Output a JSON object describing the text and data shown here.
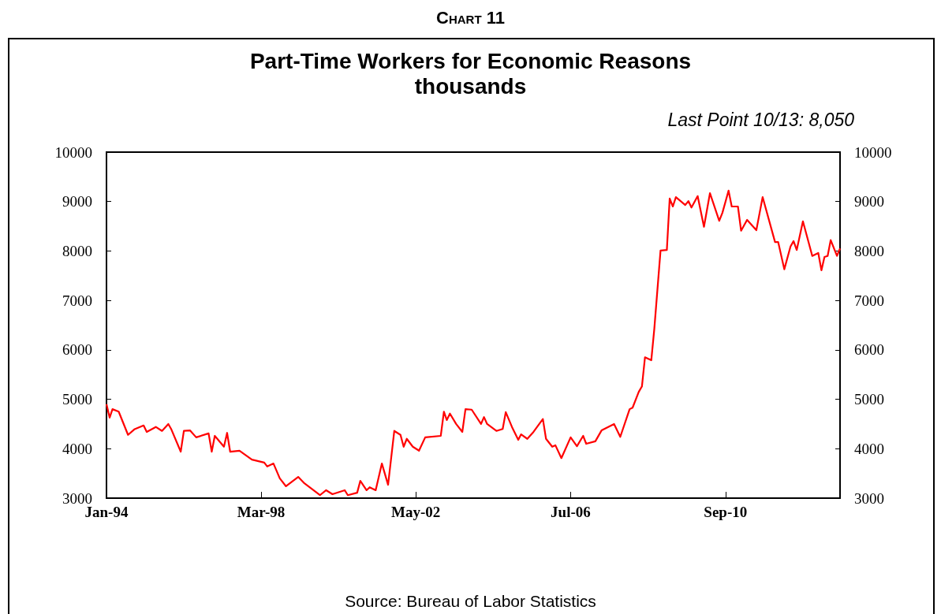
{
  "chart_data": {
    "type": "line",
    "title": "Part-Time Workers for Economic Reasons",
    "subtitle": "thousands",
    "annotations": [
      "Chart 11",
      "Last Point 10/13: 8,050",
      "Source: Bureau of Labor Statistics"
    ],
    "x": [
      "1994-01",
      "1994-02",
      "1994-03",
      "1994-05",
      "1994-08",
      "1994-10",
      "1995-01",
      "1995-02",
      "1995-05",
      "1995-07",
      "1995-09",
      "1995-10",
      "1996-01",
      "1996-02",
      "1996-04",
      "1996-06",
      "1996-10",
      "1996-11",
      "1996-12",
      "1997-03",
      "1997-04",
      "1997-05",
      "1997-08",
      "1997-12",
      "1998-04",
      "1998-05",
      "1998-07",
      "1998-09",
      "1998-11",
      "1999-03",
      "1999-05",
      "1999-10",
      "1999-12",
      "2000-02",
      "2000-06",
      "2000-07",
      "2000-10",
      "2000-11",
      "2001-01",
      "2001-02",
      "2001-04",
      "2001-06",
      "2001-08",
      "2001-10",
      "2001-12",
      "2002-01",
      "2002-02",
      "2002-04",
      "2002-06",
      "2002-08",
      "2003-01",
      "2003-02",
      "2003-03",
      "2003-04",
      "2003-06",
      "2003-08",
      "2003-09",
      "2003-11",
      "2004-02",
      "2004-03",
      "2004-04",
      "2004-07",
      "2004-09",
      "2004-10",
      "2004-12",
      "2005-02",
      "2005-03",
      "2005-05",
      "2005-07",
      "2005-10",
      "2005-11",
      "2006-01",
      "2006-02",
      "2006-04",
      "2006-07",
      "2006-09",
      "2006-11",
      "2006-12",
      "2007-03",
      "2007-05",
      "2007-09",
      "2007-11",
      "2008-02",
      "2008-03",
      "2008-05",
      "2008-06",
      "2008-07",
      "2008-09",
      "2008-10",
      "2008-12",
      "2009-02",
      "2009-03",
      "2009-04",
      "2009-05",
      "2009-08",
      "2009-09",
      "2009-10",
      "2009-12",
      "2010-02",
      "2010-04",
      "2010-07",
      "2010-08",
      "2010-10",
      "2010-11",
      "2011-01",
      "2011-02",
      "2011-04",
      "2011-07",
      "2011-09",
      "2012-01",
      "2012-02",
      "2012-04",
      "2012-06",
      "2012-07",
      "2012-08",
      "2012-10",
      "2013-01",
      "2013-03",
      "2013-04",
      "2013-05",
      "2013-06",
      "2013-07",
      "2013-09",
      "2013-10"
    ],
    "series": [
      {
        "color": "#ff0000",
        "values": [
          4900,
          4630,
          4800,
          4750,
          4280,
          4390,
          4470,
          4340,
          4440,
          4360,
          4500,
          4390,
          3940,
          4360,
          4370,
          4230,
          4310,
          3940,
          4260,
          4040,
          4320,
          3940,
          3960,
          3780,
          3720,
          3640,
          3700,
          3400,
          3240,
          3430,
          3300,
          3060,
          3160,
          3080,
          3160,
          3060,
          3110,
          3350,
          3160,
          3220,
          3160,
          3700,
          3270,
          4360,
          4280,
          4040,
          4200,
          4040,
          3960,
          4230,
          4260,
          4750,
          4580,
          4710,
          4500,
          4340,
          4800,
          4790,
          4500,
          4640,
          4500,
          4360,
          4400,
          4740,
          4440,
          4180,
          4290,
          4200,
          4340,
          4600,
          4200,
          4040,
          4070,
          3810,
          4230,
          4050,
          4260,
          4100,
          4150,
          4370,
          4500,
          4240,
          4800,
          4830,
          5150,
          5260,
          5850,
          5790,
          6430,
          8010,
          8020,
          9060,
          8900,
          9090,
          8930,
          9010,
          8880,
          9110,
          8490,
          9170,
          8610,
          8770,
          9220,
          8900,
          8900,
          8410,
          8630,
          8420,
          9090,
          8180,
          8180,
          7630,
          8090,
          8200,
          8020,
          8600,
          7900,
          7960,
          7610,
          7880,
          7900,
          8220,
          7900,
          8050
        ]
      }
    ],
    "xlim": [
      "1994-01",
      "2013-10"
    ],
    "xticks": [
      {
        "value": "1994-01",
        "label": "Jan-94"
      },
      {
        "value": "1998-03",
        "label": "Mar-98"
      },
      {
        "value": "2002-05",
        "label": "May-02"
      },
      {
        "value": "2006-07",
        "label": "Jul-06"
      },
      {
        "value": "2010-09",
        "label": "Sep-10"
      }
    ],
    "ylim": [
      3000,
      10000
    ],
    "yticks": [
      3000,
      4000,
      5000,
      6000,
      7000,
      8000,
      9000,
      10000
    ],
    "y2lim": [
      3000,
      10000
    ],
    "y2ticks": [
      3000,
      4000,
      5000,
      6000,
      7000,
      8000,
      9000,
      10000
    ],
    "grid": false,
    "marker": "none",
    "line_style": "solid"
  }
}
